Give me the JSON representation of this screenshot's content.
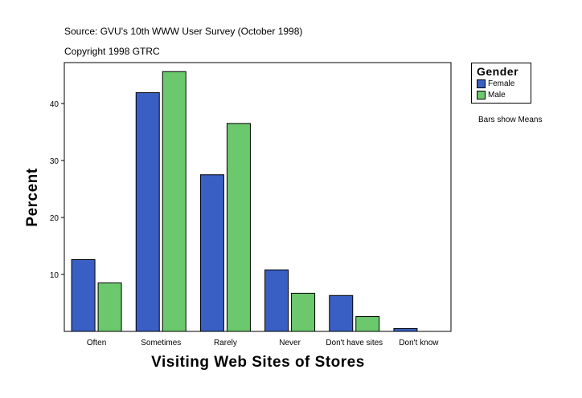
{
  "header": {
    "source": "Source: GVU's 10th WWW User Survey (October 1998)",
    "copyright": "Copyright 1998 GTRC"
  },
  "legend": {
    "title": "Gender",
    "items": [
      {
        "label": "Female",
        "color": "#3a5fc4"
      },
      {
        "label": "Male",
        "color": "#6cc86c"
      }
    ]
  },
  "note": "Bars show Means",
  "chart_data": {
    "type": "bar",
    "title": "",
    "xlabel": "Visiting Web Sites of Stores",
    "ylabel": "Percent",
    "categories": [
      "Often",
      "Sometimes",
      "Rarely",
      "Never",
      "Don't have sites",
      "Don't know"
    ],
    "series": [
      {
        "name": "Female",
        "color": "#3a5fc4",
        "values": [
          12.6,
          41.9,
          27.5,
          10.8,
          6.3,
          0.5
        ]
      },
      {
        "name": "Male",
        "color": "#6cc86c",
        "values": [
          8.5,
          45.6,
          36.5,
          6.7,
          2.6,
          0
        ]
      }
    ],
    "ylim": [
      0,
      50
    ],
    "yticks": [
      10,
      20,
      30,
      40
    ],
    "grid": false,
    "legend_position": "top-right"
  }
}
